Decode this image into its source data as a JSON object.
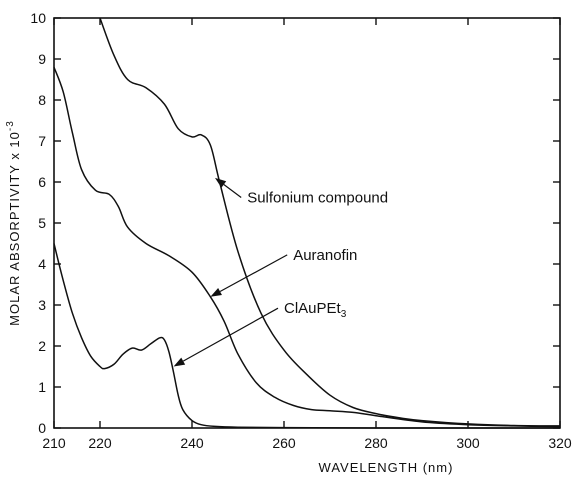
{
  "chart_data": {
    "type": "line",
    "title": "",
    "xlabel": "WAVELENGTH (nm)",
    "ylabel": "MOLAR ABSORPTIVITY x 10",
    "ylabel_exponent": "-3",
    "xlim": [
      210,
      320
    ],
    "ylim": [
      0,
      10
    ],
    "x_ticks": [
      210,
      220,
      240,
      260,
      280,
      300,
      320
    ],
    "y_ticks": [
      0,
      1,
      2,
      3,
      4,
      5,
      6,
      7,
      8,
      9,
      10
    ],
    "grid": false,
    "series": [
      {
        "name": "Sulfonium compound",
        "x": [
          220,
          223,
          226,
          230,
          234,
          237,
          240,
          242,
          244,
          246,
          250,
          255,
          260,
          265,
          270,
          275,
          280,
          285,
          290,
          300,
          310,
          320
        ],
        "y": [
          10,
          9.1,
          8.5,
          8.3,
          7.9,
          7.3,
          7.1,
          7.15,
          6.9,
          6.0,
          4.3,
          2.8,
          1.9,
          1.3,
          0.8,
          0.5,
          0.35,
          0.25,
          0.18,
          0.1,
          0.06,
          0.05
        ]
      },
      {
        "name": "Auranofin",
        "x": [
          210,
          212,
          214,
          216,
          219,
          222,
          224,
          226,
          230,
          235,
          240,
          244,
          247,
          250,
          254,
          258,
          262,
          266,
          270,
          275,
          280,
          290,
          300,
          310,
          320
        ],
        "y": [
          8.8,
          8.2,
          7.2,
          6.3,
          5.8,
          5.7,
          5.4,
          4.9,
          4.5,
          4.2,
          3.8,
          3.2,
          2.6,
          1.8,
          1.1,
          0.75,
          0.55,
          0.45,
          0.42,
          0.38,
          0.3,
          0.15,
          0.08,
          0.05,
          0.03
        ]
      },
      {
        "name": "ClAuPEt3",
        "x": [
          210,
          212,
          214,
          216,
          218,
          220,
          221,
          223,
          225,
          227,
          229,
          231,
          233,
          234,
          235,
          236,
          237,
          238,
          240,
          242,
          245,
          250,
          260,
          280,
          300,
          320
        ],
        "y": [
          4.5,
          3.6,
          2.8,
          2.2,
          1.75,
          1.5,
          1.45,
          1.55,
          1.8,
          1.95,
          1.9,
          2.05,
          2.2,
          2.15,
          1.85,
          1.35,
          0.8,
          0.45,
          0.18,
          0.08,
          0.04,
          0.02,
          0.01,
          0.0,
          0.0,
          0.0
        ]
      }
    ],
    "annotations": [
      {
        "text": "Sulfonium compound",
        "series": "Sulfonium compound",
        "at_x": 245,
        "at_y": 6.1,
        "text_x": 252,
        "text_y": 5.5
      },
      {
        "text": "Auranofin",
        "series": "Auranofin",
        "at_x": 244,
        "at_y": 3.2,
        "text_x": 262,
        "text_y": 4.1
      },
      {
        "text": "ClAuPEt",
        "subscript": "3",
        "series": "ClAuPEt3",
        "at_x": 236,
        "at_y": 1.5,
        "text_x": 260,
        "text_y": 2.8
      }
    ]
  }
}
